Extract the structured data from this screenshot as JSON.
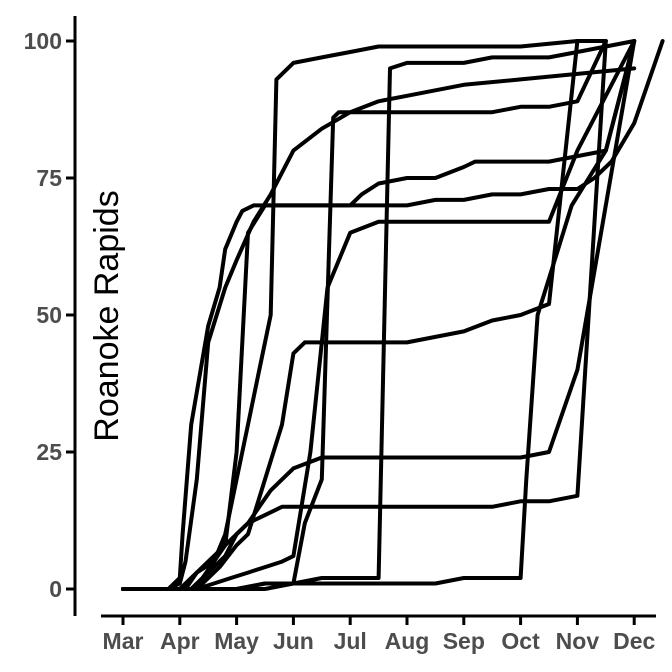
{
  "chart_data": {
    "type": "line",
    "title": "",
    "xlabel": "",
    "ylabel": "Roanoke Rapids",
    "ylim": [
      0,
      100
    ],
    "xlim": [
      -0.2,
      9.5
    ],
    "grid": false,
    "legend": "none",
    "x_tick_labels": [
      "Mar",
      "Apr",
      "May",
      "Jun",
      "Jul",
      "Aug",
      "Sep",
      "Oct",
      "Nov",
      "Dec"
    ],
    "y_ticks": [
      0,
      25,
      50,
      75,
      100
    ],
    "y_tick_labels": [
      "0",
      "25",
      "50",
      "75",
      "100"
    ],
    "line_color": "#000000",
    "series": [
      {
        "x": [
          0,
          0.8,
          1.0,
          1.05,
          1.2,
          1.5,
          1.7,
          1.8,
          2.0,
          2.1,
          2.3,
          2.6,
          3.0,
          3.5,
          4.0,
          4.5,
          5.0,
          5.5,
          6.0,
          6.5,
          7.0,
          7.5,
          8.0,
          8.3,
          8.6,
          9.0,
          9.5
        ],
        "y": [
          0,
          0,
          2,
          10,
          30,
          48,
          55,
          62,
          67,
          69,
          70,
          70,
          70,
          70,
          70,
          70,
          70,
          71,
          71,
          72,
          72,
          73,
          73,
          75,
          78,
          85,
          100
        ]
      },
      {
        "x": [
          0,
          0.8,
          1.0,
          1.1,
          1.3,
          1.5,
          1.8,
          2.0,
          2.3,
          2.6,
          3.0,
          3.5,
          4.0,
          4.5,
          5.0,
          5.5,
          6.0,
          7.0,
          8.0,
          9.0
        ],
        "y": [
          0,
          0,
          1,
          5,
          20,
          45,
          55,
          60,
          67,
          72,
          80,
          84,
          87,
          89,
          90,
          91,
          92,
          93,
          94,
          95
        ]
      },
      {
        "x": [
          0,
          1.0,
          1.2,
          1.5,
          1.8,
          2.0,
          2.2,
          2.4,
          2.6,
          2.8,
          3.0,
          3.5,
          4.0,
          4.5,
          5.0,
          6.0,
          7.0,
          7.5,
          8.0,
          8.5,
          9.0
        ],
        "y": [
          0,
          0,
          2,
          5,
          8,
          10,
          12,
          15,
          18,
          20,
          22,
          24,
          24,
          24,
          24,
          24,
          24,
          25,
          40,
          70,
          100
        ]
      },
      {
        "x": [
          0,
          1.1,
          1.3,
          1.6,
          1.8,
          2.0,
          2.1,
          2.2,
          2.5,
          3.0,
          3.5,
          4.0,
          4.2,
          4.5,
          5.0,
          5.5,
          6.0,
          6.2,
          6.5,
          7.0,
          7.5,
          8.0,
          8.5,
          9.0
        ],
        "y": [
          0,
          0,
          3,
          5,
          8,
          25,
          45,
          65,
          70,
          70,
          70,
          70,
          72,
          74,
          75,
          75,
          77,
          78,
          78,
          78,
          78,
          79,
          80,
          100
        ]
      },
      {
        "x": [
          0,
          1.2,
          1.4,
          1.6,
          1.8,
          2.0,
          2.2,
          2.4,
          2.6,
          2.7,
          3.0,
          3.5,
          4.0,
          4.5,
          5.0,
          6.0,
          7.0,
          8.0,
          8.5
        ],
        "y": [
          0,
          0,
          2,
          5,
          10,
          20,
          30,
          40,
          50,
          93,
          96,
          97,
          98,
          99,
          99,
          99,
          99,
          100,
          100
        ]
      },
      {
        "x": [
          0,
          1.2,
          1.5,
          1.8,
          2.0,
          2.2,
          2.4,
          2.6,
          2.8,
          3.0,
          3.2,
          3.5,
          4.0,
          5.0,
          6.0,
          6.5,
          7.0,
          7.5,
          8.0,
          8.5
        ],
        "y": [
          0,
          0,
          3,
          6,
          10,
          12,
          13,
          14,
          15,
          15,
          15,
          15,
          15,
          15,
          15,
          15,
          16,
          16,
          17,
          100
        ]
      },
      {
        "x": [
          0,
          1.3,
          1.5,
          1.7,
          2.0,
          2.2,
          2.5,
          2.8,
          3.0,
          3.2,
          3.4,
          3.6,
          4.0,
          4.5,
          5.0,
          5.5,
          6.0,
          6.5,
          7.0,
          7.5,
          8.0
        ],
        "y": [
          0,
          0,
          2,
          4,
          8,
          10,
          20,
          30,
          43,
          45,
          45,
          45,
          45,
          45,
          45,
          46,
          47,
          49,
          50,
          52,
          100
        ]
      },
      {
        "x": [
          0,
          1.3,
          1.6,
          1.9,
          2.2,
          2.5,
          2.8,
          3.0,
          3.3,
          3.6,
          4.0,
          4.5,
          5.0,
          5.5,
          6.0,
          6.5,
          7.0,
          7.5,
          8.0,
          8.5,
          9.0
        ],
        "y": [
          0,
          0,
          1,
          2,
          3,
          4,
          5,
          6,
          25,
          55,
          65,
          67,
          67,
          67,
          67,
          67,
          67,
          67,
          80,
          90,
          100
        ]
      },
      {
        "x": [
          0,
          1.5,
          2.0,
          2.5,
          3.0,
          3.2,
          3.5,
          3.7,
          3.8,
          4.0,
          4.5,
          5.0,
          5.5,
          6.0,
          6.5,
          7.0,
          7.5,
          8.0,
          8.5
        ],
        "y": [
          0,
          0,
          0,
          1,
          1,
          12,
          20,
          86,
          87,
          87,
          87,
          87,
          87,
          87,
          87,
          88,
          88,
          89,
          100
        ]
      },
      {
        "x": [
          0,
          1.5,
          2.0,
          2.5,
          3.0,
          3.5,
          4.0,
          4.5,
          4.7,
          5.0,
          5.5,
          6.0,
          6.5,
          7.0,
          7.5,
          8.0,
          8.5,
          9.0
        ],
        "y": [
          0,
          0,
          0,
          1,
          1,
          2,
          2,
          2,
          95,
          96,
          96,
          96,
          97,
          97,
          97,
          98,
          99,
          100
        ]
      },
      {
        "x": [
          0,
          1.5,
          2.0,
          2.5,
          3.0,
          3.5,
          4.0,
          4.5,
          5.0,
          5.5,
          6.0,
          6.5,
          7.0,
          7.1,
          7.3,
          7.6,
          7.9,
          8.2,
          8.5,
          9.0
        ],
        "y": [
          0,
          0,
          0,
          0,
          1,
          1,
          1,
          1,
          1,
          1,
          2,
          2,
          2,
          20,
          50,
          60,
          70,
          75,
          80,
          100
        ]
      }
    ]
  }
}
